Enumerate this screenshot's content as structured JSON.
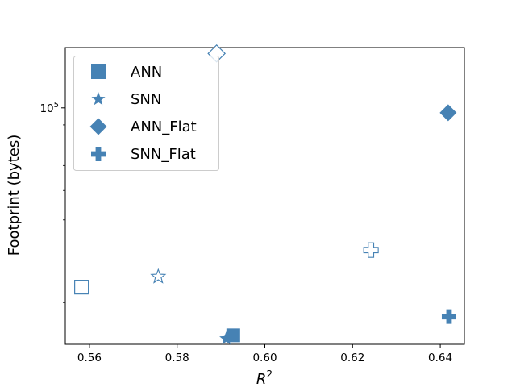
{
  "colors": {
    "marker": "#4682b4",
    "axis": "#000000",
    "legend_border": "#cccccc"
  },
  "chart_data": {
    "type": "scatter",
    "xlabel_base": "R",
    "xlabel_sup": "2",
    "ylabel": "Footprint (bytes)",
    "xlim": [
      0.5545,
      0.6455
    ],
    "ylim_log10": [
      4.365,
      5.162
    ],
    "y_scale": "log",
    "x_ticks": [
      {
        "value": 0.56,
        "label": "0.56"
      },
      {
        "value": 0.58,
        "label": "0.58"
      },
      {
        "value": 0.6,
        "label": "0.60"
      },
      {
        "value": 0.62,
        "label": "0.62"
      },
      {
        "value": 0.64,
        "label": "0.64"
      }
    ],
    "y_ticks": [
      {
        "value": 100000,
        "label_base": "10",
        "label_sup": "5"
      }
    ],
    "grid": false,
    "legend_position": "top-left",
    "series": [
      {
        "name": "ANN",
        "marker": "square",
        "points": [
          {
            "x": 0.5582,
            "y": 33000,
            "filled": false
          },
          {
            "x": 0.5928,
            "y": 24500,
            "filled": true
          }
        ]
      },
      {
        "name": "SNN",
        "marker": "star",
        "points": [
          {
            "x": 0.5757,
            "y": 35200,
            "filled": false
          },
          {
            "x": 0.5912,
            "y": 24000,
            "filled": true
          }
        ]
      },
      {
        "name": "ANN_Flat",
        "marker": "diamond",
        "points": [
          {
            "x": 0.589,
            "y": 140000,
            "filled": false
          },
          {
            "x": 0.6418,
            "y": 97000,
            "filled": true
          }
        ]
      },
      {
        "name": "SNN_Flat",
        "marker": "plus",
        "points": [
          {
            "x": 0.6242,
            "y": 41500,
            "filled": false
          },
          {
            "x": 0.642,
            "y": 27500,
            "filled": true
          }
        ]
      }
    ]
  }
}
